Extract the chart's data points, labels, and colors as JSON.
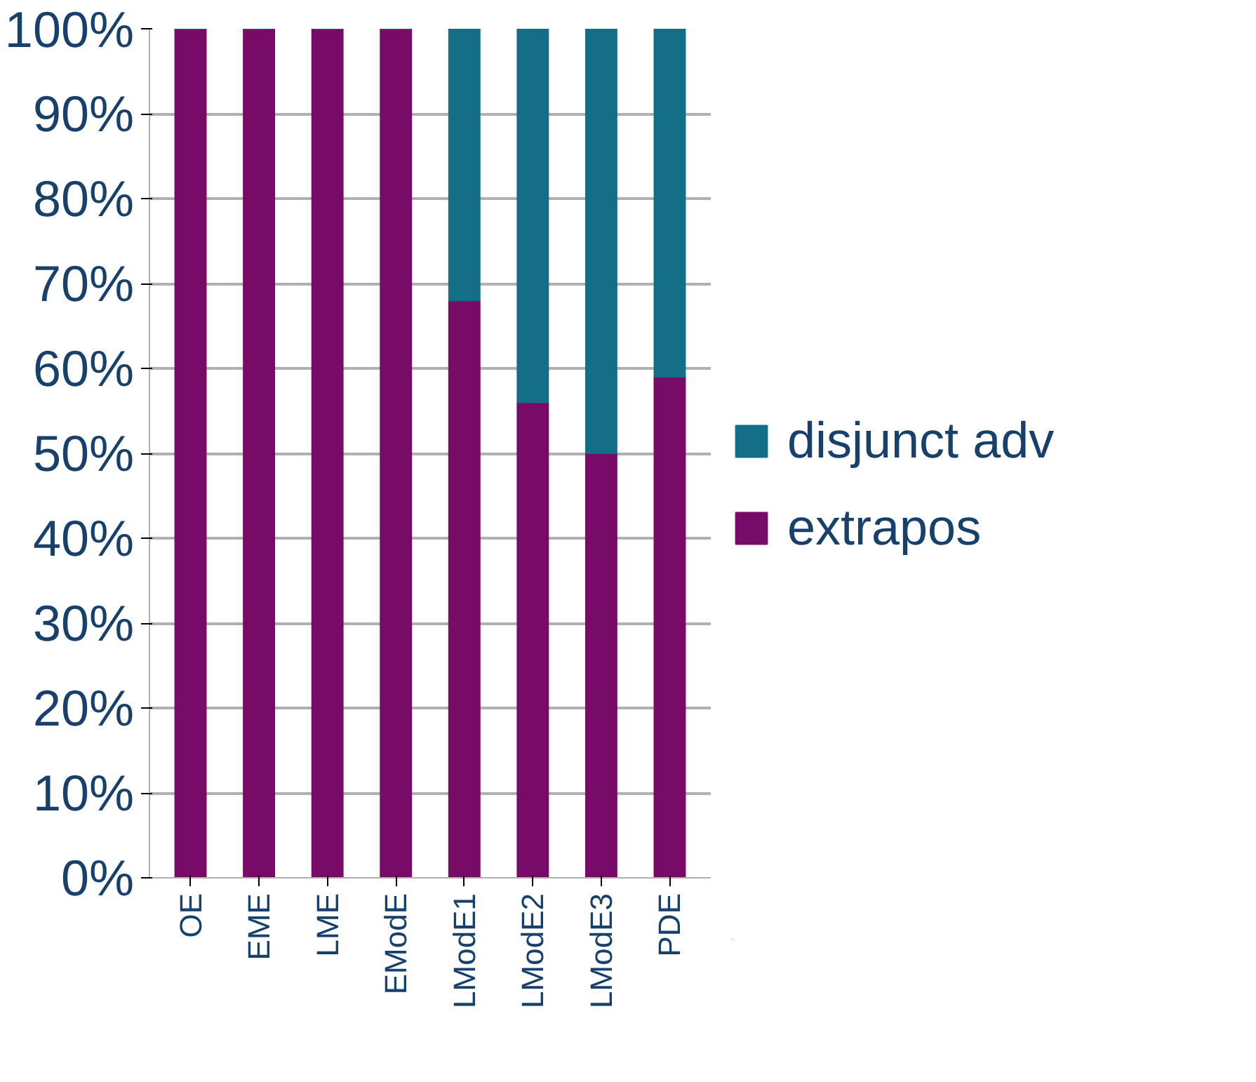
{
  "chart_data": {
    "type": "bar",
    "stacked": true,
    "categories": [
      "OE",
      "EME",
      "LME",
      "EModE",
      "LModE1",
      "LModE2",
      "LModE3",
      "PDE"
    ],
    "series": [
      {
        "name": "extrapos",
        "color": "#780a68",
        "values": [
          100,
          100,
          100,
          100,
          68,
          56,
          50,
          59
        ]
      },
      {
        "name": "disjunct adv",
        "color": "#156e88",
        "values": [
          0,
          0,
          0,
          0,
          32,
          44,
          50,
          41
        ]
      }
    ],
    "ylim": [
      0,
      100
    ],
    "yticks": [
      {
        "value": 0,
        "label": "0%"
      },
      {
        "value": 10,
        "label": "10%"
      },
      {
        "value": 20,
        "label": "20%"
      },
      {
        "value": 30,
        "label": "30%"
      },
      {
        "value": 40,
        "label": "40%"
      },
      {
        "value": 50,
        "label": "50%"
      },
      {
        "value": 60,
        "label": "60%"
      },
      {
        "value": 70,
        "label": "70%"
      },
      {
        "value": 80,
        "label": "80%"
      },
      {
        "value": 90,
        "label": "90%"
      },
      {
        "value": 100,
        "label": "100%"
      }
    ],
    "grid": "y",
    "legend": "right"
  }
}
